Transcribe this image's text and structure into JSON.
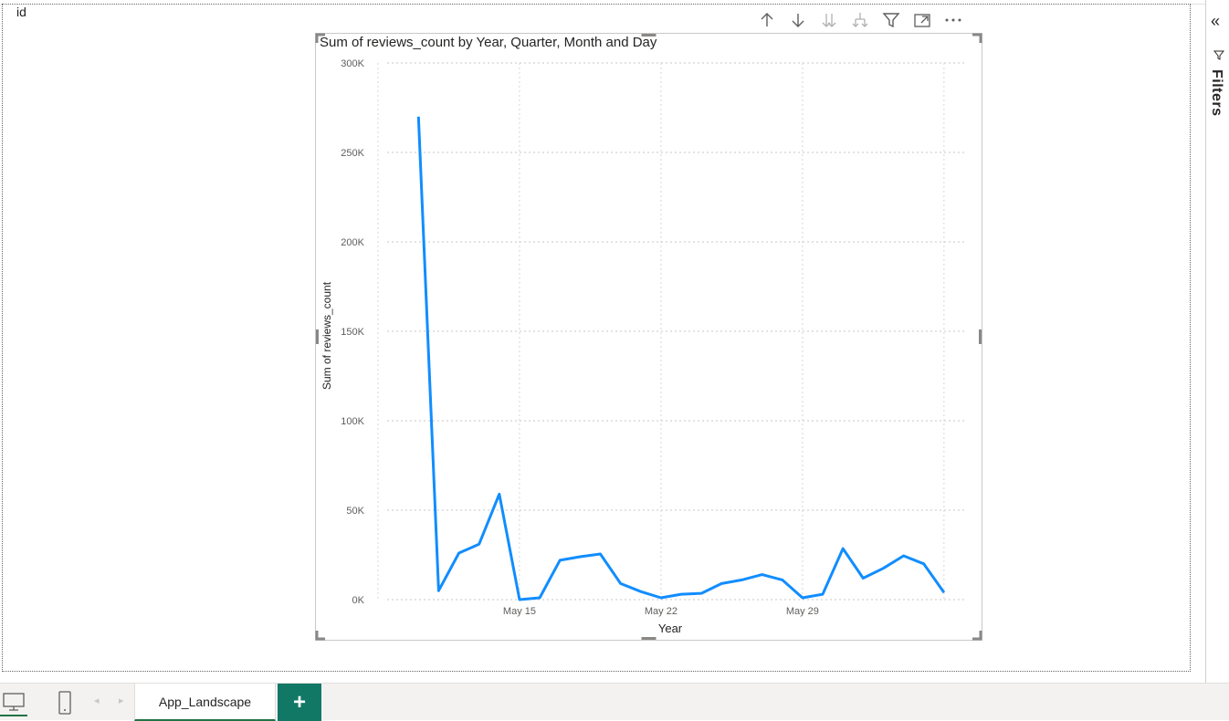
{
  "canvas": {
    "field_label": "id"
  },
  "visual_header": {
    "buttons": [
      {
        "name": "drill-up",
        "icon": "arrow-up-icon"
      },
      {
        "name": "drill-down",
        "icon": "arrow-down-icon"
      },
      {
        "name": "go-to-next-level",
        "icon": "double-arrow-down-icon"
      },
      {
        "name": "expand-all",
        "icon": "fork-down-icon"
      },
      {
        "name": "filter",
        "icon": "filter-icon"
      },
      {
        "name": "focus-mode",
        "icon": "focus-mode-icon"
      },
      {
        "name": "more-options",
        "icon": "more-icon"
      }
    ]
  },
  "filters_pane": {
    "label": "Filters",
    "collapse_glyph": "«"
  },
  "bottom_bar": {
    "page_tab": "App_Landscape",
    "add_page": "+",
    "prev_glyph": "◂",
    "next_glyph": "▸"
  },
  "chart_data": {
    "type": "line",
    "title": "Sum of reviews_count by Year, Quarter, Month and Day",
    "xlabel": "Year",
    "ylabel": "Sum of reviews_count",
    "ylim": [
      0,
      300000
    ],
    "yticks": [
      0,
      50000,
      100000,
      150000,
      200000,
      250000,
      300000
    ],
    "ytick_labels": [
      "0K",
      "50K",
      "100K",
      "150K",
      "200K",
      "250K",
      "300K"
    ],
    "xlim": [
      8,
      37
    ],
    "xticks": [
      15,
      22,
      29
    ],
    "xtick_labels": [
      "May 15",
      "May 22",
      "May 29"
    ],
    "x_gridlines": [
      8,
      15,
      22,
      29,
      36
    ],
    "grid": true,
    "color": "#118dff",
    "series": [
      {
        "name": "Sum of reviews_count",
        "x": [
          10,
          11,
          12,
          13,
          14,
          15,
          16,
          17,
          18,
          19,
          20,
          21,
          22,
          23,
          24,
          25,
          26,
          27,
          28,
          29,
          30,
          31,
          32,
          33,
          34,
          35,
          36
        ],
        "values": [
          270000,
          5000,
          26000,
          31000,
          59000,
          0,
          1000,
          22000,
          24000,
          25500,
          9000,
          4500,
          1000,
          3000,
          3500,
          9000,
          11000,
          14000,
          11000,
          1000,
          3000,
          28500,
          12000,
          17500,
          24500,
          20000,
          4000
        ]
      }
    ]
  }
}
